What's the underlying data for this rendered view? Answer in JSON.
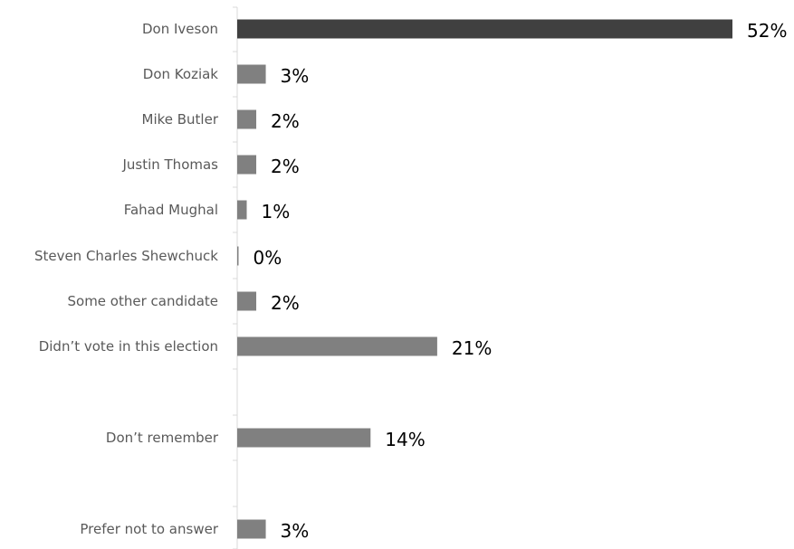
{
  "chart_data": {
    "type": "bar",
    "orientation": "horizontal",
    "categories": [
      "Don Iveson",
      "Don Koziak",
      "Mike Butler",
      "Justin Thomas",
      "Fahad Mughal",
      "Steven Charles Shewchuck",
      "Some other candidate",
      "Didn’t vote in this election",
      "Don’t remember",
      "Prefer not to answer"
    ],
    "values": [
      52,
      3,
      2,
      2,
      1,
      0,
      2,
      21,
      14,
      3
    ],
    "value_labels": [
      "52%",
      "3%",
      "2%",
      "2%",
      "1%",
      "0%",
      "2%",
      "21%",
      "14%",
      "3%"
    ],
    "unit": "%",
    "xlim": [
      0,
      52
    ],
    "title": "",
    "xlabel": "",
    "ylabel": "",
    "grid": false,
    "legend": "none",
    "highlight_index": 0
  },
  "colors": {
    "highlight_bar": "#404040",
    "bar": "#808080",
    "axis": "#d9d9d9",
    "category_text": "#595959",
    "value_text": "#000000"
  }
}
